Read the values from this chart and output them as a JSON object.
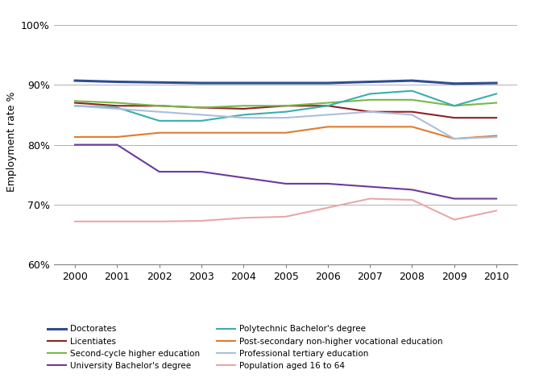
{
  "years": [
    2000,
    2001,
    2002,
    2003,
    2004,
    2005,
    2006,
    2007,
    2008,
    2009,
    2010
  ],
  "series": [
    {
      "label": "Doctorates",
      "color": "#2E4D91",
      "linewidth": 2.2,
      "data": [
        90.7,
        90.5,
        90.4,
        90.3,
        90.3,
        90.3,
        90.3,
        90.5,
        90.7,
        90.2,
        90.3
      ]
    },
    {
      "label": "Licentiates",
      "color": "#8B2323",
      "linewidth": 1.5,
      "data": [
        87.0,
        86.5,
        86.5,
        86.2,
        86.0,
        86.5,
        86.5,
        85.5,
        85.5,
        84.5,
        84.5
      ]
    },
    {
      "label": "Second-cycle higher education",
      "color": "#7AB648",
      "linewidth": 1.5,
      "data": [
        87.3,
        87.0,
        86.5,
        86.2,
        86.5,
        86.5,
        87.0,
        87.5,
        87.5,
        86.5,
        87.0
      ]
    },
    {
      "label": "University Bachelor's degree",
      "color": "#6A3B9C",
      "linewidth": 1.5,
      "data": [
        80.0,
        80.0,
        75.5,
        75.5,
        74.5,
        73.5,
        73.5,
        73.0,
        72.5,
        71.0,
        71.0
      ]
    },
    {
      "label": "Polytechnic Bachelor's degree",
      "color": "#3AAEAE",
      "linewidth": 1.5,
      "data": [
        86.5,
        86.2,
        84.0,
        84.0,
        85.0,
        85.5,
        86.5,
        88.5,
        89.0,
        86.5,
        88.5
      ]
    },
    {
      "label": "Post-secondary non-higher vocational education",
      "color": "#E07B30",
      "linewidth": 1.5,
      "data": [
        81.3,
        81.3,
        82.0,
        82.0,
        82.0,
        82.0,
        83.0,
        83.0,
        83.0,
        81.0,
        81.5
      ]
    },
    {
      "label": "Professional tertiary education",
      "color": "#AABFDD",
      "linewidth": 1.5,
      "data": [
        86.5,
        86.0,
        85.5,
        85.0,
        84.5,
        84.5,
        85.0,
        85.5,
        85.0,
        81.0,
        81.3
      ]
    },
    {
      "label": "Population aged 16 to 64",
      "color": "#E8A8A8",
      "linewidth": 1.5,
      "data": [
        67.2,
        67.2,
        67.2,
        67.3,
        67.8,
        68.0,
        69.5,
        71.0,
        70.8,
        67.5,
        69.0
      ]
    }
  ],
  "ylabel": "Employment rate %",
  "ylim": [
    60,
    101
  ],
  "yticks": [
    60,
    70,
    80,
    90,
    100
  ],
  "ytick_labels": [
    "60%",
    "70%",
    "80%",
    "90%",
    "100%"
  ],
  "xlim": [
    1999.5,
    2010.5
  ],
  "background_color": "#ffffff",
  "grid_color": "#b0b0b0",
  "legend_fontsize": 7.5,
  "legend_order": [
    0,
    1,
    2,
    3,
    4,
    5,
    6,
    7
  ]
}
